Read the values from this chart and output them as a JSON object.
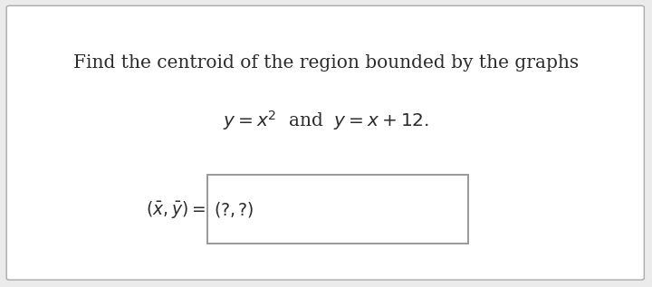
{
  "background_color": "#ebebeb",
  "panel_color": "#ffffff",
  "text_color": "#2b2b2b",
  "line1": "Find the centroid of the region bounded by the graphs",
  "line2": "$y = x^2$  and  $y = x + 12.$",
  "answer_label": "$(\\bar{x}, \\bar{y}) = $",
  "answer_box_text": "$(?, ?)$",
  "box_edge_color": "#999999",
  "panel_edge_color": "#aaaaaa",
  "font_size_main": 14.5,
  "font_size_eq": 14.5,
  "font_size_answer": 13.5
}
